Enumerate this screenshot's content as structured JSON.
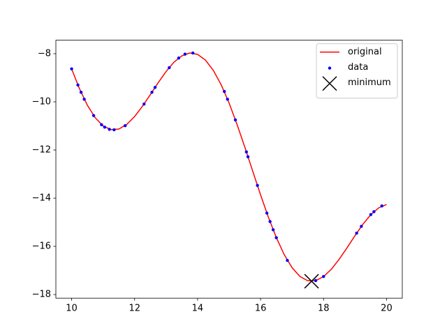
{
  "chart_data": {
    "type": "line",
    "legend": "upper right",
    "xlim": [
      9.5,
      20.5
    ],
    "ylim": [
      -18.15,
      -7.44
    ],
    "xticks": [
      10,
      12,
      14,
      16,
      18,
      20
    ],
    "yticks": [
      {
        "value": -18,
        "label": "−18"
      },
      {
        "value": -16,
        "label": "−16"
      },
      {
        "value": -14,
        "label": "−14"
      },
      {
        "value": -12,
        "label": "−12"
      },
      {
        "value": -10,
        "label": "−10"
      },
      {
        "value": -8,
        "label": "−8"
      }
    ],
    "series": [
      {
        "name": "original",
        "type": "line",
        "color": "red",
        "x": [
          10,
          10.25,
          10.5,
          10.75,
          11,
          11.25,
          11.5,
          11.75,
          12,
          12.25,
          12.5,
          12.75,
          13,
          13.25,
          13.5,
          13.75,
          14,
          14.25,
          14.5,
          14.75,
          15,
          15.25,
          15.5,
          15.75,
          16,
          16.25,
          16.5,
          16.75,
          17,
          17.25,
          17.5,
          17.75,
          18,
          18.25,
          18.5,
          18.75,
          19,
          19.25,
          19.5,
          19.75,
          20
        ],
        "values": [
          -8.632,
          -9.454,
          -10.139,
          -10.66,
          -11.0,
          -11.154,
          -11.127,
          -10.937,
          -10.61,
          -10.182,
          -9.699,
          -9.202,
          -8.739,
          -8.35,
          -8.089,
          -7.971,
          -8.028,
          -8.269,
          -8.695,
          -9.293,
          -10.049,
          -10.929,
          -11.882,
          -12.876,
          -13.864,
          -14.797,
          -15.635,
          -16.341,
          -16.884,
          -17.249,
          -17.427,
          -17.424,
          -17.253,
          -16.945,
          -16.528,
          -16.049,
          -15.55,
          -15.079,
          -14.683,
          -14.402,
          -14.261
        ]
      },
      {
        "name": "data",
        "type": "scatter",
        "color": "blue",
        "x": [
          10.0,
          10.2,
          10.3,
          10.4,
          10.7,
          10.95,
          11.05,
          11.2,
          11.35,
          11.7,
          12.3,
          12.55,
          12.65,
          13.1,
          13.4,
          13.6,
          13.85,
          14.85,
          14.95,
          15.2,
          15.55,
          15.6,
          15.9,
          16.2,
          16.3,
          16.4,
          16.5,
          16.85,
          17.75,
          18.0,
          19.05,
          19.2,
          19.5,
          19.6,
          19.85
        ],
        "values": [
          -8.63,
          -9.3,
          -9.6,
          -9.89,
          -10.57,
          -10.95,
          -11.05,
          -11.14,
          -11.16,
          -10.99,
          -10.09,
          -9.6,
          -9.4,
          -8.58,
          -8.18,
          -8.02,
          -7.97,
          -9.57,
          -9.89,
          -10.75,
          -12.08,
          -12.28,
          -13.47,
          -14.62,
          -14.97,
          -15.31,
          -15.64,
          -16.58,
          -17.42,
          -17.25,
          -15.45,
          -15.17,
          -14.68,
          -14.56,
          -14.32
        ]
      },
      {
        "name": "minimum",
        "type": "marker",
        "color": "black",
        "x": [
          17.619
        ],
        "values": [
          -17.447
        ]
      }
    ]
  }
}
